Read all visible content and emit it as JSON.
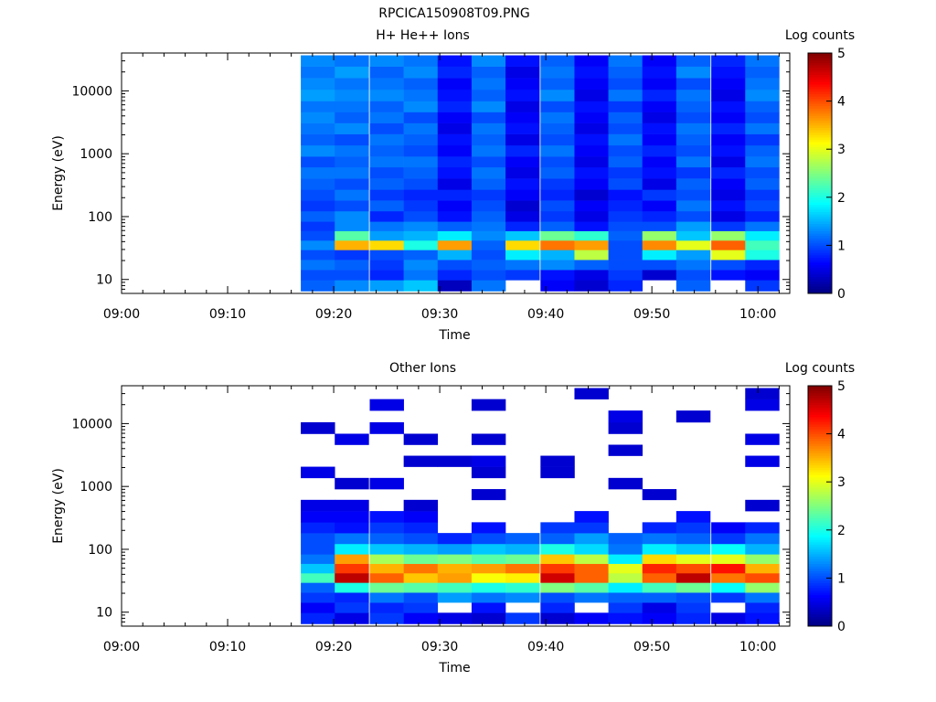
{
  "figure": {
    "title": "RPCICA150908T09.PNG"
  },
  "chart_data": [
    {
      "type": "heatmap",
      "title": "H+ He++ Ions",
      "xlabel": "Time",
      "ylabel": "Energy (eV)",
      "xlim": [
        "09:00",
        "10:03"
      ],
      "ylim": [
        6,
        40000
      ],
      "yscale": "log",
      "x_ticks": [
        "09:00",
        "09:10",
        "09:20",
        "09:30",
        "09:40",
        "09:50",
        "10:00"
      ],
      "y_ticks": [
        "10",
        "100",
        "1000",
        "10000"
      ],
      "colorbar": {
        "label": "Log counts",
        "range": [
          0,
          5
        ],
        "ticks": [
          "0",
          "1",
          "2",
          "3",
          "4",
          "5"
        ]
      },
      "time_columns": [
        "09:18.5",
        "09:21.7",
        "09:25.0",
        "09:28.2",
        "09:31.4",
        "09:34.6",
        "09:37.8",
        "09:41.1",
        "09:44.3",
        "09:47.5",
        "09:50.7",
        "09:53.9",
        "09:57.2",
        "10:00.4"
      ],
      "energy_bands_eV": [
        8,
        12,
        17,
        25,
        35,
        50,
        70,
        100,
        150,
        220,
        330,
        500,
        750,
        1100,
        1700,
        2500,
        3800,
        5600,
        8500,
        13000,
        20000,
        30000
      ],
      "z_log_counts": [
        [
          1.1,
          1.3,
          1.4,
          1.6,
          0.3,
          1.2,
          null,
          0.6,
          0.4,
          0.8,
          null,
          1.1,
          null,
          0.9
        ],
        [
          1.0,
          1.0,
          0.8,
          1.2,
          0.8,
          1.0,
          0.9,
          0.7,
          0.5,
          0.9,
          0.4,
          1.0,
          0.7,
          0.6
        ],
        [
          1.2,
          1.1,
          0.9,
          1.3,
          1.0,
          1.1,
          1.2,
          1.3,
          1.1,
          1.0,
          1.0,
          1.2,
          1.0,
          0.8
        ],
        [
          1.0,
          0.9,
          1.0,
          1.1,
          1.5,
          1.0,
          1.8,
          1.5,
          2.8,
          1.0,
          1.8,
          1.4,
          3.0,
          2.0
        ],
        [
          1.3,
          3.5,
          3.3,
          2.0,
          3.6,
          1.1,
          3.3,
          3.8,
          3.6,
          1.0,
          3.7,
          3.0,
          3.9,
          2.2
        ],
        [
          1.0,
          2.3,
          1.4,
          1.5,
          1.8,
          1.3,
          1.6,
          2.4,
          2.1,
          1.1,
          2.6,
          1.6,
          2.6,
          1.8
        ],
        [
          0.9,
          1.3,
          1.2,
          1.3,
          1.1,
          1.2,
          0.8,
          1.1,
          0.7,
          1.0,
          1.0,
          1.4,
          0.9,
          1.2
        ],
        [
          1.1,
          1.3,
          0.8,
          1.0,
          0.7,
          1.1,
          0.5,
          0.9,
          0.5,
          0.9,
          0.8,
          1.0,
          0.5,
          0.8
        ],
        [
          0.9,
          1.0,
          1.1,
          0.9,
          0.6,
          1.0,
          0.4,
          1.0,
          0.6,
          0.8,
          0.6,
          1.2,
          0.7,
          1.0
        ],
        [
          1.0,
          1.2,
          0.9,
          0.8,
          0.8,
          0.9,
          0.6,
          0.8,
          0.4,
          0.7,
          0.9,
          1.0,
          0.5,
          0.9
        ],
        [
          1.1,
          1.0,
          1.1,
          1.0,
          0.5,
          1.1,
          0.7,
          0.9,
          0.6,
          1.0,
          0.5,
          1.1,
          0.6,
          1.1
        ],
        [
          1.2,
          1.2,
          1.0,
          1.1,
          0.7,
          1.2,
          0.5,
          1.1,
          0.7,
          0.9,
          0.7,
          0.9,
          0.8,
          1.0
        ],
        [
          1.0,
          1.1,
          1.2,
          1.2,
          0.8,
          1.0,
          0.6,
          1.0,
          0.5,
          1.1,
          0.6,
          1.2,
          0.5,
          1.2
        ],
        [
          1.3,
          1.2,
          1.1,
          1.0,
          0.6,
          1.2,
          0.8,
          1.2,
          0.6,
          1.0,
          0.8,
          1.0,
          0.7,
          1.1
        ],
        [
          1.1,
          1.0,
          1.2,
          1.1,
          0.7,
          1.1,
          0.5,
          1.0,
          0.7,
          1.2,
          0.6,
          1.1,
          0.6,
          0.9
        ],
        [
          1.2,
          1.3,
          1.0,
          1.2,
          0.5,
          1.2,
          0.7,
          1.1,
          0.5,
          1.0,
          0.7,
          1.2,
          0.8,
          1.2
        ],
        [
          1.3,
          1.1,
          1.2,
          1.0,
          0.6,
          1.0,
          0.6,
          1.2,
          0.6,
          1.1,
          0.5,
          1.0,
          0.6,
          1.0
        ],
        [
          1.2,
          1.2,
          1.1,
          1.3,
          0.8,
          1.3,
          0.5,
          1.0,
          0.7,
          0.9,
          0.6,
          1.1,
          0.7,
          1.1
        ],
        [
          1.4,
          1.3,
          1.3,
          1.2,
          0.7,
          1.1,
          0.7,
          1.3,
          0.5,
          1.2,
          0.8,
          1.2,
          0.5,
          1.3
        ],
        [
          1.3,
          1.2,
          1.2,
          1.1,
          0.6,
          1.2,
          0.6,
          1.1,
          0.6,
          1.0,
          0.6,
          1.0,
          0.6,
          1.2
        ],
        [
          1.2,
          1.4,
          1.1,
          1.3,
          0.8,
          1.1,
          0.5,
          1.2,
          0.7,
          1.1,
          0.7,
          1.3,
          0.7,
          1.1
        ],
        [
          1.3,
          1.2,
          1.3,
          1.2,
          0.7,
          1.3,
          0.7,
          1.1,
          0.6,
          1.2,
          0.6,
          1.1,
          0.8,
          1.2
        ]
      ]
    },
    {
      "type": "heatmap",
      "title": "Other Ions",
      "xlabel": "Time",
      "ylabel": "Energy (eV)",
      "xlim": [
        "09:00",
        "10:03"
      ],
      "ylim": [
        6,
        40000
      ],
      "yscale": "log",
      "x_ticks": [
        "09:00",
        "09:10",
        "09:20",
        "09:30",
        "09:40",
        "09:50",
        "10:00"
      ],
      "y_ticks": [
        "10",
        "100",
        "1000",
        "10000"
      ],
      "colorbar": {
        "label": "Log counts",
        "range": [
          0,
          5
        ],
        "ticks": [
          "0",
          "1",
          "2",
          "3",
          "4",
          "5"
        ]
      },
      "time_columns": [
        "09:18.5",
        "09:21.7",
        "09:25.0",
        "09:28.2",
        "09:31.4",
        "09:34.6",
        "09:37.8",
        "09:41.1",
        "09:44.3",
        "09:47.5",
        "09:50.7",
        "09:53.9",
        "09:57.2",
        "10:00.4"
      ],
      "energy_bands_eV": [
        8,
        12,
        17,
        25,
        35,
        50,
        70,
        100,
        150,
        220,
        330,
        500,
        750,
        1100,
        1700,
        2500,
        3800,
        5600,
        8500,
        13000,
        20000,
        30000
      ],
      "z_log_counts": [
        [
          0.8,
          0.5,
          0.9,
          0.6,
          0.5,
          0.4,
          0.9,
          0.4,
          0.6,
          0.7,
          0.6,
          0.8,
          0.5,
          0.7
        ],
        [
          0.6,
          0.9,
          0.8,
          0.9,
          null,
          0.7,
          null,
          0.8,
          null,
          0.9,
          0.5,
          0.9,
          null,
          0.8
        ],
        [
          0.9,
          0.8,
          1.2,
          1.0,
          1.4,
          1.2,
          1.3,
          1.0,
          1.2,
          1.1,
          1.1,
          1.0,
          0.9,
          1.2
        ],
        [
          1.1,
          2.0,
          2.4,
          2.3,
          2.2,
          2.0,
          2.1,
          2.5,
          2.3,
          1.8,
          2.2,
          2.4,
          1.9,
          2.6
        ],
        [
          2.2,
          4.7,
          3.9,
          3.4,
          3.6,
          3.1,
          3.2,
          4.6,
          3.9,
          2.8,
          3.9,
          4.7,
          3.8,
          4.0
        ],
        [
          1.6,
          4.1,
          3.5,
          3.8,
          3.5,
          3.6,
          3.8,
          4.1,
          3.9,
          3.0,
          4.2,
          4.0,
          4.3,
          3.5
        ],
        [
          1.2,
          3.6,
          2.7,
          2.4,
          2.5,
          2.3,
          2.4,
          3.4,
          2.8,
          1.8,
          3.3,
          3.0,
          3.0,
          2.6
        ],
        [
          1.0,
          1.8,
          1.6,
          1.5,
          1.4,
          1.6,
          1.5,
          2.0,
          1.7,
          1.2,
          1.8,
          1.6,
          1.9,
          1.5
        ],
        [
          1.0,
          1.2,
          1.1,
          1.0,
          0.8,
          1.0,
          1.1,
          1.1,
          1.4,
          1.1,
          1.2,
          1.1,
          0.9,
          1.2
        ],
        [
          0.8,
          0.7,
          0.9,
          0.8,
          null,
          0.7,
          null,
          0.9,
          0.9,
          null,
          0.8,
          0.9,
          0.6,
          0.8
        ],
        [
          0.6,
          0.6,
          0.7,
          0.6,
          null,
          null,
          null,
          null,
          0.7,
          null,
          null,
          0.7,
          null,
          null
        ],
        [
          0.5,
          0.5,
          null,
          0.4,
          null,
          null,
          null,
          null,
          null,
          null,
          null,
          null,
          null,
          0.4
        ],
        [
          null,
          null,
          null,
          null,
          null,
          0.4,
          null,
          null,
          null,
          null,
          0.4,
          null,
          null,
          null
        ],
        [
          null,
          0.4,
          0.5,
          null,
          null,
          null,
          null,
          null,
          null,
          0.4,
          null,
          null,
          null,
          null
        ],
        [
          0.5,
          null,
          null,
          null,
          null,
          0.4,
          null,
          0.4,
          null,
          null,
          null,
          null,
          null,
          null
        ],
        [
          null,
          null,
          null,
          0.4,
          0.4,
          0.5,
          null,
          0.4,
          null,
          null,
          null,
          null,
          null,
          0.5
        ],
        [
          null,
          null,
          null,
          null,
          null,
          null,
          null,
          null,
          null,
          0.4,
          null,
          null,
          null,
          null
        ],
        [
          null,
          0.5,
          null,
          0.4,
          null,
          0.4,
          null,
          null,
          null,
          null,
          null,
          null,
          null,
          0.5
        ],
        [
          0.4,
          null,
          0.5,
          null,
          null,
          null,
          null,
          null,
          null,
          0.4,
          null,
          null,
          null,
          null
        ],
        [
          null,
          null,
          null,
          null,
          null,
          null,
          null,
          null,
          null,
          0.5,
          null,
          0.4,
          null,
          null
        ],
        [
          null,
          null,
          0.5,
          null,
          null,
          0.4,
          null,
          null,
          null,
          null,
          null,
          null,
          null,
          0.5
        ],
        [
          null,
          null,
          null,
          null,
          null,
          null,
          null,
          null,
          0.4,
          null,
          null,
          null,
          null,
          0.4
        ]
      ]
    }
  ]
}
